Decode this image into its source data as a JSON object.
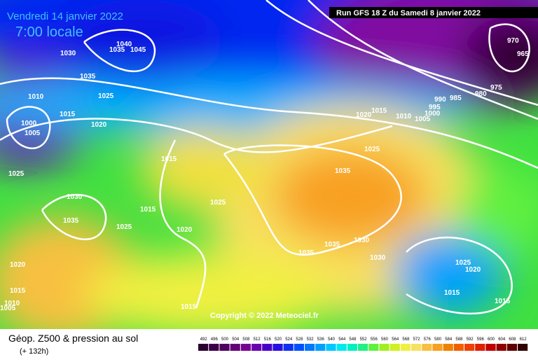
{
  "header": {
    "valid_date": "Vendredi 14 janvier 2022",
    "local_time": "7:00 locale",
    "run": "Run GFS 18 Z du Samedi 8 janvier 2022",
    "copyright": "Copyright © 2022 Meteociel.fr"
  },
  "footer": {
    "title": "Géop. Z500 & pression au sol",
    "lead": "(+ 132h)"
  },
  "scale": {
    "labels": [
      492,
      496,
      500,
      504,
      508,
      512,
      516,
      520,
      524,
      528,
      532,
      536,
      540,
      544,
      548,
      552,
      556,
      560,
      564,
      568,
      572,
      576,
      580,
      584,
      588,
      592,
      596,
      600,
      604,
      608,
      612
    ],
    "colors": [
      "#2a0030",
      "#3d0048",
      "#50005e",
      "#640078",
      "#78008e",
      "#6a00b0",
      "#4a00c8",
      "#2a10e0",
      "#1030f0",
      "#0050ff",
      "#0078ff",
      "#00a0ff",
      "#00c8ff",
      "#00e8f0",
      "#00f0c0",
      "#20f080",
      "#60f040",
      "#a0f020",
      "#d0f020",
      "#f0f040",
      "#f8e060",
      "#f8c040",
      "#f8a020",
      "#f08000",
      "#f06000",
      "#f04000",
      "#e02000",
      "#c00000",
      "#900000",
      "#600000",
      "#300000"
    ]
  },
  "isobars": [
    1030,
    1035,
    1040,
    1045,
    1035,
    1025,
    1010,
    1015,
    1020,
    1000,
    1005,
    1025,
    1015,
    1030,
    1015,
    1025,
    1035,
    1025,
    1020,
    1035,
    1025,
    1020,
    1015,
    1010,
    1005,
    1000,
    995,
    990,
    985,
    980,
    975,
    970,
    965,
    1035,
    1035,
    1030,
    1030,
    1025,
    1020,
    1015,
    1015,
    1020,
    1015,
    1015,
    1010,
    1005
  ]
}
